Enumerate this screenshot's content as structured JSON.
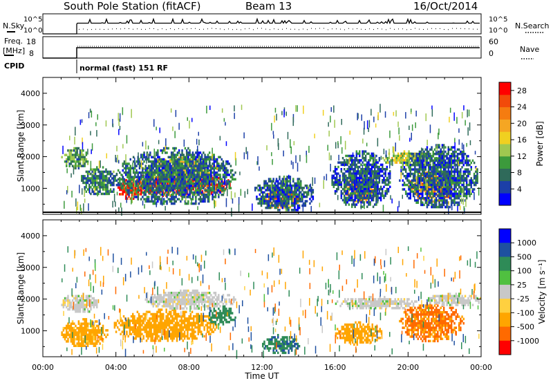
{
  "header": {
    "station": "South Pole Station (fitACF)",
    "beam": "Beam 13",
    "date": "16/Oct/2014"
  },
  "colors": {
    "power": [
      "#0000ff",
      "#1c3fa8",
      "#2f6a5a",
      "#3c9a3c",
      "#a0c850",
      "#f0d020",
      "#f5a623",
      "#f57c10",
      "#f24a0a",
      "#ff0000"
    ],
    "velocity": [
      "#ff0000",
      "#ff6a00",
      "#ffa500",
      "#ffd040",
      "#c8c8c8",
      "#50c040",
      "#2e8b57",
      "#1e50a0",
      "#0000ff"
    ]
  },
  "top_panels": {
    "nsky_label": "N.Sky",
    "nsky_ticks": [
      "10^5",
      "10^0"
    ],
    "nsearch_label": "N.Search",
    "nsearch_ticks": [
      "10^5",
      "10^0"
    ],
    "freq_label_1": "Freq.",
    "freq_label_2": "[MHz]",
    "freq_ticks": [
      "18",
      "8"
    ],
    "nave_label": "Nave",
    "nave_ticks": [
      "60",
      "0"
    ],
    "cpid_label": "CPID",
    "cpid_text": "normal (fast) 151 RF"
  },
  "chart_data": [
    {
      "type": "heatmap",
      "quantity": "Power",
      "ylabel": "Slant Range [km]",
      "ylim": [
        180,
        4500
      ],
      "yticks": [
        "1000",
        "2000",
        "3000",
        "4000"
      ],
      "xlim_hours": [
        0,
        24
      ],
      "colorbar_label": "Power [dB]",
      "colorbar_ticks": [
        "4",
        "8",
        "12",
        "16",
        "20",
        "24",
        "28"
      ],
      "colorbar_range": [
        0,
        30
      ],
      "echo_regions": [
        {
          "t0": 1.0,
          "t1": 2.5,
          "r0": 1650,
          "r1": 2300,
          "value": 10
        },
        {
          "t0": 2.0,
          "t1": 4.2,
          "r0": 800,
          "r1": 1700,
          "value": 8
        },
        {
          "t0": 4.0,
          "t1": 5.5,
          "r0": 700,
          "r1": 1200,
          "value": 28
        },
        {
          "t0": 4.2,
          "t1": 10.3,
          "r0": 800,
          "r1": 1500,
          "value": 26
        },
        {
          "t0": 5.5,
          "t1": 9.5,
          "r0": 1300,
          "r1": 2000,
          "value": 16
        },
        {
          "t0": 4.0,
          "t1": 10.5,
          "r0": 500,
          "r1": 2300,
          "value": 7
        },
        {
          "t0": 12.0,
          "t1": 14.0,
          "r0": 400,
          "r1": 1000,
          "value": 22
        },
        {
          "t0": 11.5,
          "t1": 14.8,
          "r0": 300,
          "r1": 1400,
          "value": 6
        },
        {
          "t0": 16.5,
          "t1": 18.3,
          "r0": 600,
          "r1": 1400,
          "value": 22
        },
        {
          "t0": 15.8,
          "t1": 19.0,
          "r0": 400,
          "r1": 2200,
          "value": 6
        },
        {
          "t0": 18.5,
          "t1": 21.5,
          "r0": 1750,
          "r1": 2200,
          "value": 14
        },
        {
          "t0": 20.0,
          "t1": 22.5,
          "r0": 600,
          "r1": 1600,
          "value": 22
        },
        {
          "t0": 19.5,
          "t1": 23.8,
          "r0": 400,
          "r1": 2400,
          "value": 6
        }
      ]
    },
    {
      "type": "heatmap",
      "quantity": "Velocity",
      "ylabel": "Slant Range [km]",
      "xlabel": "Time UT",
      "ylim": [
        180,
        4500
      ],
      "yticks": [
        "1000",
        "2000",
        "3000",
        "4000"
      ],
      "xticks": [
        "00:00",
        "04:00",
        "08:00",
        "12:00",
        "16:00",
        "20:00",
        "00:00"
      ],
      "xlim_hours": [
        0,
        24
      ],
      "colorbar_label": "Velocity [m s⁻¹]",
      "colorbar_ticks": [
        "1000",
        "500",
        "100",
        "25",
        "-25",
        "-100",
        "-500",
        "-1000"
      ],
      "echo_regions": [
        {
          "t0": 1.0,
          "t1": 3.0,
          "r0": 1600,
          "r1": 2200,
          "value": 0
        },
        {
          "t0": 1.0,
          "t1": 3.5,
          "r0": 500,
          "r1": 1400,
          "value": -150
        },
        {
          "t0": 3.8,
          "t1": 9.5,
          "r0": 700,
          "r1": 1700,
          "value": -200
        },
        {
          "t0": 5.5,
          "t1": 10.5,
          "r0": 1700,
          "r1": 2300,
          "value": 0
        },
        {
          "t0": 9.0,
          "t1": 10.5,
          "r0": 1200,
          "r1": 1800,
          "value": 300
        },
        {
          "t0": 12.0,
          "t1": 14.0,
          "r0": 300,
          "r1": 900,
          "value": 400
        },
        {
          "t0": 16.0,
          "t1": 18.5,
          "r0": 600,
          "r1": 1300,
          "value": -250
        },
        {
          "t0": 16.0,
          "t1": 20.5,
          "r0": 1700,
          "r1": 2100,
          "value": 0
        },
        {
          "t0": 19.5,
          "t1": 23.0,
          "r0": 700,
          "r1": 1900,
          "value": -600
        },
        {
          "t0": 21.0,
          "t1": 24.0,
          "r0": 1800,
          "r1": 2200,
          "value": 0
        }
      ]
    }
  ]
}
